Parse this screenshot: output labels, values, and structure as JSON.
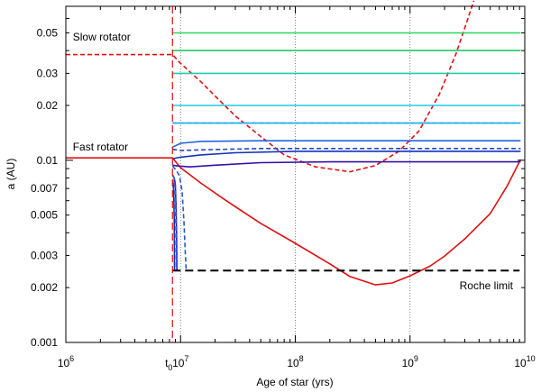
{
  "chart_data": {
    "type": "line",
    "xscale": "log",
    "yscale": "log",
    "xlim": [
      1000000,
      10000000000
    ],
    "ylim": [
      0.001,
      0.07
    ],
    "xlabel": "Age of star (yrs)",
    "ylabel": "a (AU)",
    "x_ticks": [
      {
        "value": 1000000,
        "base": "10",
        "exp": "6"
      },
      {
        "value": 10000000,
        "base": "10",
        "exp": "7"
      },
      {
        "value": 100000000,
        "base": "10",
        "exp": "8"
      },
      {
        "value": 1000000000,
        "base": "10",
        "exp": "9"
      },
      {
        "value": 10000000000,
        "base": "10",
        "exp": "10"
      }
    ],
    "y_ticks": [
      {
        "value": 0.001,
        "label": "0.001"
      },
      {
        "value": 0.002,
        "label": "0.002"
      },
      {
        "value": 0.003,
        "label": "0.003"
      },
      {
        "value": 0.005,
        "label": "0.005"
      },
      {
        "value": 0.007,
        "label": "0.007"
      },
      {
        "value": 0.01,
        "label": "0.01"
      },
      {
        "value": 0.02,
        "label": "0.02"
      },
      {
        "value": 0.03,
        "label": "0.03"
      },
      {
        "value": 0.05,
        "label": "0.05"
      }
    ],
    "grid_x": [
      10000000,
      100000000,
      1000000000
    ],
    "t0": {
      "value": 8500000,
      "label_base": "t",
      "label_sub": "0",
      "color": "#e01010"
    },
    "annotations": {
      "slow": {
        "text": "Slow rotator",
        "x": 1150000,
        "y": 0.0455
      },
      "fast": {
        "text": "Fast rotator",
        "x": 1150000,
        "y": 0.0113
      },
      "roche": {
        "text": "Roche limit",
        "x": 2700000000,
        "y": 0.00196
      }
    },
    "series": [
      {
        "color": "#e01010",
        "dash": "dashed",
        "points": [
          [
            1000000,
            0.038
          ],
          [
            8500000,
            0.038
          ],
          [
            10000000,
            0.034
          ],
          [
            15000000,
            0.027
          ],
          [
            20000000,
            0.0225
          ],
          [
            30000000,
            0.0175
          ],
          [
            50000000,
            0.0135
          ],
          [
            80000000,
            0.0107
          ],
          [
            150000000,
            0.0092
          ],
          [
            300000000,
            0.00865
          ],
          [
            500000000,
            0.00935
          ],
          [
            800000000,
            0.0112
          ],
          [
            1200000000,
            0.0145
          ],
          [
            1800000000,
            0.023
          ],
          [
            2500000000,
            0.038
          ],
          [
            3200000000,
            0.06
          ],
          [
            3600000000,
            0.075
          ]
        ]
      },
      {
        "color": "#e01010",
        "dash": "solid",
        "points": [
          [
            1000000,
            0.0103
          ],
          [
            8500000,
            0.0103
          ],
          [
            10000000,
            0.0091
          ],
          [
            15000000,
            0.0075
          ],
          [
            25000000,
            0.006
          ],
          [
            50000000,
            0.0045
          ],
          [
            100000000,
            0.0035
          ],
          [
            200000000,
            0.0027
          ],
          [
            300000000,
            0.0023
          ],
          [
            500000000,
            0.00207
          ],
          [
            700000000,
            0.00212
          ],
          [
            1000000000,
            0.00232
          ],
          [
            1500000000,
            0.00263
          ],
          [
            2000000000,
            0.00298
          ],
          [
            3000000000,
            0.0037
          ],
          [
            5000000000,
            0.0051
          ],
          [
            7000000000,
            0.0072
          ],
          [
            9200000000,
            0.0101
          ]
        ]
      },
      {
        "color": "#22dd55",
        "dash": "solid",
        "points": [
          [
            8500000,
            0.05
          ],
          [
            9200000000,
            0.05
          ]
        ]
      },
      {
        "color": "#22cc66",
        "dash": "solid",
        "points": [
          [
            8500000,
            0.04
          ],
          [
            9200000000,
            0.04
          ]
        ]
      },
      {
        "color": "#22ccaa",
        "dash": "solid",
        "points": [
          [
            8500000,
            0.03
          ],
          [
            9200000000,
            0.03
          ]
        ]
      },
      {
        "color": "#22ccdd",
        "dash": "solid",
        "points": [
          [
            8500000,
            0.02
          ],
          [
            9200000000,
            0.02
          ]
        ]
      },
      {
        "color": "#22aaee",
        "dash": "solid",
        "points": [
          [
            8500000,
            0.016
          ],
          [
            9200000000,
            0.016
          ]
        ]
      },
      {
        "color": "#22aaee",
        "dash": "dashed",
        "points": [
          [
            8500000,
            0.016
          ],
          [
            9200000000,
            0.016
          ]
        ]
      },
      {
        "color": "#2266dd",
        "dash": "solid",
        "points": [
          [
            8500000,
            0.0118
          ],
          [
            10000000,
            0.0124
          ],
          [
            15000000,
            0.0127
          ],
          [
            50000000,
            0.0128
          ],
          [
            9200000000,
            0.0128
          ]
        ]
      },
      {
        "color": "#2244cc",
        "dash": "dashed",
        "points": [
          [
            8500000,
            0.0115
          ],
          [
            10000000,
            0.0113
          ],
          [
            15000000,
            0.0114
          ],
          [
            50000000,
            0.0116
          ],
          [
            9200000000,
            0.0116
          ]
        ]
      },
      {
        "color": "#1133bb",
        "dash": "solid",
        "points": [
          [
            8500000,
            0.0102
          ],
          [
            10000000,
            0.0104
          ],
          [
            15000000,
            0.0107
          ],
          [
            30000000,
            0.011
          ],
          [
            100000000,
            0.0112
          ],
          [
            9200000000,
            0.0112
          ]
        ]
      },
      {
        "color": "#3311aa",
        "dash": "solid",
        "points": [
          [
            8500000,
            0.0094
          ],
          [
            9500000,
            0.0093
          ],
          [
            12000000,
            0.0092
          ],
          [
            20000000,
            0.0094
          ],
          [
            50000000,
            0.0097
          ],
          [
            200000000,
            0.0098
          ],
          [
            9200000000,
            0.0098
          ]
        ]
      },
      {
        "color": "#2255dd",
        "dash": "dashed",
        "points": [
          [
            8500000,
            0.0093
          ],
          [
            9200000,
            0.0088
          ],
          [
            9800000,
            0.0082
          ],
          [
            10300000,
            0.0068
          ],
          [
            10700000,
            0.0046
          ],
          [
            11000000,
            0.0031
          ],
          [
            11200000,
            0.00248
          ]
        ]
      },
      {
        "color": "#3311aa",
        "dash": "solid",
        "points": [
          [
            8500000,
            0.0083
          ],
          [
            8800000,
            0.008
          ],
          [
            9000000,
            0.0074
          ],
          [
            9150000,
            0.0055
          ],
          [
            9250000,
            0.0036
          ],
          [
            9300000,
            0.00248
          ]
        ]
      },
      {
        "color": "#2266dd",
        "dash": "dashed",
        "points": [
          [
            8600000,
            0.0082
          ],
          [
            8800000,
            0.0079
          ],
          [
            9000000,
            0.0065
          ],
          [
            9100000,
            0.0043
          ],
          [
            9200000,
            0.00248
          ]
        ]
      },
      {
        "color": "#1133bb",
        "dash": "solid",
        "points": [
          [
            8550000,
            0.0078
          ],
          [
            8700000,
            0.0068
          ],
          [
            8800000,
            0.0048
          ],
          [
            8850000,
            0.00248
          ]
        ]
      },
      {
        "color": "#000000",
        "dash": "longdash",
        "points": [
          [
            8500000,
            0.00248
          ],
          [
            9000000000,
            0.00248
          ]
        ]
      }
    ]
  }
}
